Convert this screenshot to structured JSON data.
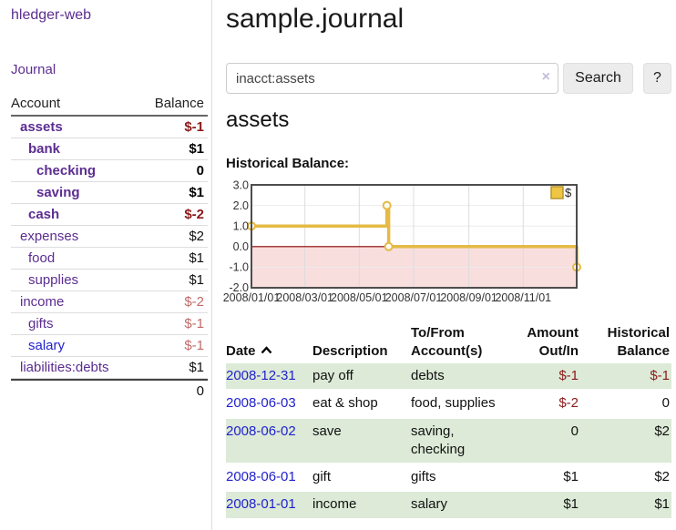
{
  "app": {
    "brand": "hledger-web"
  },
  "nav": {
    "journal": "Journal"
  },
  "sidebar": {
    "col_account": "Account",
    "col_balance": "Balance",
    "accounts": [
      {
        "name": "assets",
        "balance": "$-1"
      },
      {
        "name": "bank",
        "balance": "$1"
      },
      {
        "name": "checking",
        "balance": "0"
      },
      {
        "name": "saving",
        "balance": "$1"
      },
      {
        "name": "cash",
        "balance": "$-2"
      },
      {
        "name": "expenses",
        "balance": "$2"
      },
      {
        "name": "food",
        "balance": "$1"
      },
      {
        "name": "supplies",
        "balance": "$1"
      },
      {
        "name": "income",
        "balance": "$-2"
      },
      {
        "name": "gifts",
        "balance": "$-1"
      },
      {
        "name": "salary",
        "balance": "$-1"
      },
      {
        "name": "liabilities:debts",
        "balance": "$1"
      }
    ],
    "total": "0"
  },
  "main": {
    "title": "sample.journal",
    "search": {
      "query": "inacct:assets",
      "clear": "×",
      "button": "Search",
      "help": "?"
    },
    "account_heading": "assets",
    "section_label": "Historical Balance:",
    "chart_data": {
      "type": "line",
      "step": true,
      "title": "Historical Balance",
      "legend": "$",
      "x_ticks": [
        "2008/01/01",
        "2008/03/01",
        "2008/05/01",
        "2008/07/01",
        "2008/09/01",
        "2008/11/01"
      ],
      "y_ticks": [
        "3.0",
        "2.0",
        "1.0",
        "0.0",
        "-1.0",
        "-2.0"
      ],
      "ylim": [
        -2,
        3
      ],
      "x_range": [
        "2008-01-01",
        "2008-12-31"
      ],
      "series": [
        {
          "name": "$",
          "points": [
            [
              "2008-01-01",
              1
            ],
            [
              "2008-06-01",
              2
            ],
            [
              "2008-06-03",
              0
            ],
            [
              "2008-12-31",
              -1
            ]
          ]
        }
      ],
      "colors": {
        "line": "#e5ba45",
        "negative_region": "#f9dede",
        "zero_line": "#8b0000"
      }
    }
  },
  "register": {
    "headers": {
      "date": "Date",
      "description": "Description",
      "accounts": "To/From Account(s)",
      "amount": "Amount Out/In",
      "balance": "Historical Balance"
    },
    "rows": [
      {
        "date": "2008-12-31",
        "description": "pay off",
        "accounts": "debts",
        "amount": "$-1",
        "balance": "$-1"
      },
      {
        "date": "2008-06-03",
        "description": "eat & shop",
        "accounts": "food, supplies",
        "amount": "$-2",
        "balance": "0"
      },
      {
        "date": "2008-06-02",
        "description": "save",
        "accounts": "saving, checking",
        "amount": "0",
        "balance": "$2"
      },
      {
        "date": "2008-06-01",
        "description": "gift",
        "accounts": "gifts",
        "amount": "$1",
        "balance": "$2"
      },
      {
        "date": "2008-01-01",
        "description": "income",
        "accounts": "salary",
        "amount": "$1",
        "balance": "$1"
      }
    ]
  }
}
